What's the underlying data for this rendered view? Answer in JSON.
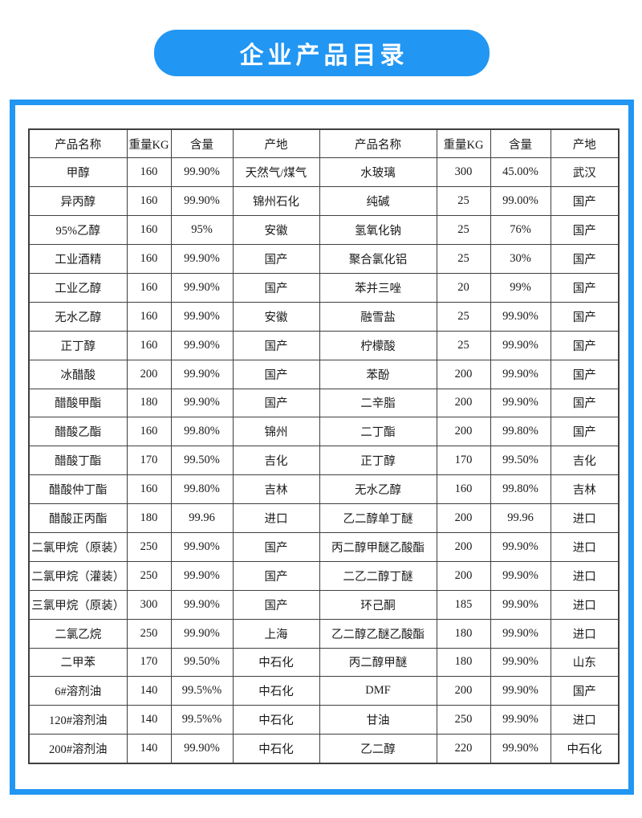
{
  "title": "企业产品目录",
  "table": {
    "headers": [
      "产品名称",
      "重量KG",
      "含量",
      "产地",
      "产品名称",
      "重量KG",
      "含量",
      "产地"
    ],
    "rows": [
      [
        "甲醇",
        "160",
        "99.90%",
        "天然气/煤气",
        "水玻璃",
        "300",
        "45.00%",
        "武汉"
      ],
      [
        "异丙醇",
        "160",
        "99.90%",
        "锦州石化",
        "纯碱",
        "25",
        "99.00%",
        "国产"
      ],
      [
        "95%乙醇",
        "160",
        "95%",
        "安徽",
        "氢氧化钠",
        "25",
        "76%",
        "国产"
      ],
      [
        "工业酒精",
        "160",
        "99.90%",
        "国产",
        "聚合氯化铝",
        "25",
        "30%",
        "国产"
      ],
      [
        "工业乙醇",
        "160",
        "99.90%",
        "国产",
        "苯并三唑",
        "20",
        "99%",
        "国产"
      ],
      [
        "无水乙醇",
        "160",
        "99.90%",
        "安徽",
        "融雪盐",
        "25",
        "99.90%",
        "国产"
      ],
      [
        "正丁醇",
        "160",
        "99.90%",
        "国产",
        "柠檬酸",
        "25",
        "99.90%",
        "国产"
      ],
      [
        "冰醋酸",
        "200",
        "99.90%",
        "国产",
        "苯酚",
        "200",
        "99.90%",
        "国产"
      ],
      [
        "醋酸甲酯",
        "180",
        "99.90%",
        "国产",
        "二辛脂",
        "200",
        "99.90%",
        "国产"
      ],
      [
        "醋酸乙酯",
        "160",
        "99.80%",
        "锦州",
        "二丁酯",
        "200",
        "99.80%",
        "国产"
      ],
      [
        "醋酸丁酯",
        "170",
        "99.50%",
        "吉化",
        "正丁醇",
        "170",
        "99.50%",
        "吉化"
      ],
      [
        "醋酸仲丁酯",
        "160",
        "99.80%",
        "吉林",
        "无水乙醇",
        "160",
        "99.80%",
        "吉林"
      ],
      [
        "醋酸正丙酯",
        "180",
        "99.96",
        "进口",
        "乙二醇单丁醚",
        "200",
        "99.96",
        "进口"
      ],
      [
        "二氯甲烷（原装）",
        "250",
        "99.90%",
        "国产",
        "丙二醇甲醚乙酸酯",
        "200",
        "99.90%",
        "进口"
      ],
      [
        "二氯甲烷（灌装）",
        "250",
        "99.90%",
        "国产",
        "二乙二醇丁醚",
        "200",
        "99.90%",
        "进口"
      ],
      [
        "三氯甲烷（原装）",
        "300",
        "99.90%",
        "国产",
        "环己酮",
        "185",
        "99.90%",
        "进口"
      ],
      [
        "二氯乙烷",
        "250",
        "99.90%",
        "上海",
        "乙二醇乙醚乙酸酯",
        "180",
        "99.90%",
        "进口"
      ],
      [
        "二甲苯",
        "170",
        "99.50%",
        "中石化",
        "丙二醇甲醚",
        "180",
        "99.90%",
        "山东"
      ],
      [
        "6#溶剂油",
        "140",
        "99.5%%",
        "中石化",
        "DMF",
        "200",
        "99.90%",
        "国产"
      ],
      [
        "120#溶剂油",
        "140",
        "99.5%%",
        "中石化",
        "甘油",
        "250",
        "99.90%",
        "进口"
      ],
      [
        "200#溶剂油",
        "140",
        "99.90%",
        "中石化",
        "乙二醇",
        "220",
        "99.90%",
        "中石化"
      ]
    ],
    "selected_cell": {
      "row": 5,
      "col": 0,
      "label": "无水乙醇"
    }
  },
  "colors": {
    "banner_blue": "#2196F3",
    "frame_blue": "#2196F3",
    "table_border": "#3f3f3f",
    "selection_green": "#7cc57c"
  }
}
